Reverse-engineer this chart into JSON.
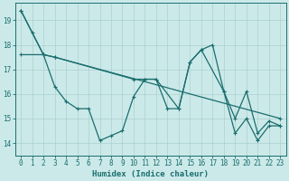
{
  "xlabel": "Humidex (Indice chaleur)",
  "background_color": "#cce9e9",
  "grid_color": "#aad0d0",
  "line_color": "#1a6e6e",
  "xlim": [
    -0.5,
    23.5
  ],
  "ylim": [
    13.5,
    19.7
  ],
  "yticks": [
    14,
    15,
    16,
    17,
    18,
    19
  ],
  "xticks": [
    0,
    1,
    2,
    3,
    4,
    5,
    6,
    7,
    8,
    9,
    10,
    11,
    12,
    13,
    14,
    15,
    16,
    17,
    18,
    19,
    20,
    21,
    22,
    23
  ],
  "line1_x": [
    0,
    1,
    2,
    3,
    4,
    5,
    6,
    7,
    8,
    9,
    10,
    11,
    12,
    13,
    14,
    15,
    16,
    17,
    18,
    19,
    20,
    21,
    22,
    23
  ],
  "line1_y": [
    19.4,
    18.5,
    17.6,
    16.3,
    15.7,
    15.4,
    15.4,
    14.1,
    14.3,
    14.5,
    15.9,
    16.6,
    16.6,
    15.4,
    15.4,
    17.3,
    17.8,
    18.0,
    16.1,
    14.4,
    15.0,
    14.1,
    14.7,
    14.7
  ],
  "line2_x": [
    0,
    2,
    3,
    10,
    11,
    12,
    14,
    15,
    16,
    18,
    19,
    20,
    21,
    22,
    23
  ],
  "line2_y": [
    19.4,
    17.6,
    17.5,
    16.6,
    16.6,
    16.6,
    15.4,
    17.3,
    17.8,
    16.1,
    15.0,
    16.1,
    14.4,
    14.9,
    14.7
  ],
  "line3_x": [
    0,
    2,
    3,
    23
  ],
  "line3_y": [
    17.6,
    17.6,
    17.5,
    15.0
  ]
}
